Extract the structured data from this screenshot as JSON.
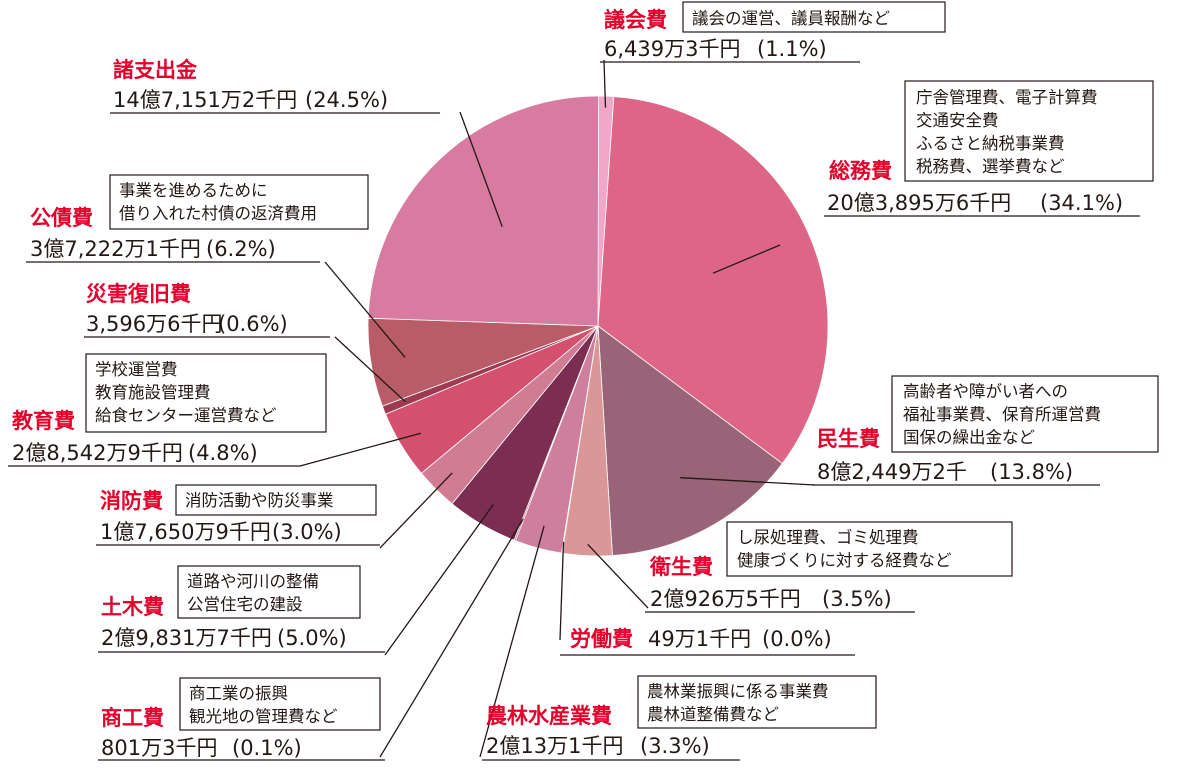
{
  "chart_data": {
    "type": "pie",
    "start_angle_deg": 0,
    "direction": "clockwise",
    "slices": [
      {
        "name": "議会費",
        "amount": "6,439万3千円",
        "percent_label": "(1.1%)",
        "value": 1.1,
        "color": "#f2a7c8",
        "description": [
          "議会の運営、議員報酬など"
        ]
      },
      {
        "name": "総務費",
        "amount": "20億3,895万6千円",
        "percent_label": "(34.1%)",
        "value": 34.1,
        "color": "#dd6585",
        "description": [
          "庁舎管理費、電子計算費",
          "交通安全費",
          "ふるさと納税事業費",
          "税務費、選挙費など"
        ]
      },
      {
        "name": "民生費",
        "amount": "8億2,449万2千",
        "percent_label": "(13.8%)",
        "value": 13.8,
        "color": "#9a6478",
        "description": [
          "高齢者や障がい者への",
          "福祉事業費、保育所運営費",
          "国保の繰出金など"
        ]
      },
      {
        "name": "衛生費",
        "amount": "2億926万5千円",
        "percent_label": "(3.5%)",
        "value": 3.5,
        "color": "#d99797",
        "description": [
          "し尿処理費、ゴミ処理費",
          "健康づくりに対する経費など"
        ]
      },
      {
        "name": "労働費",
        "amount": "49万1千円",
        "percent_label": "(0.0%)",
        "value": 0.0,
        "color": "#c06a80",
        "description": []
      },
      {
        "name": "農林水産業費",
        "amount": "2億13万1千円",
        "percent_label": "(3.3%)",
        "value": 3.3,
        "color": "#cf7f9e",
        "description": [
          "農林業振興に係る事業費",
          "農林道整備費など"
        ]
      },
      {
        "name": "商工費",
        "amount": "801万3千円",
        "percent_label": "(0.1%)",
        "value": 0.1,
        "color": "#8f3a5a",
        "description": [
          "商工業の振興",
          "観光地の管理費など"
        ]
      },
      {
        "name": "土木費",
        "amount": "2億9,831万7千円",
        "percent_label": "(5.0%)",
        "value": 5.0,
        "color": "#7c2d52",
        "description": [
          "道路や河川の整備",
          "公営住宅の建設"
        ]
      },
      {
        "name": "消防費",
        "amount": "1億7,650万9千円",
        "percent_label": "(3.0%)",
        "value": 3.0,
        "color": "#d07c93",
        "description": [
          "消防活動や防災事業"
        ]
      },
      {
        "name": "教育費",
        "amount": "2億8,542万9千円",
        "percent_label": "(4.8%)",
        "value": 4.8,
        "color": "#d3506f",
        "description": [
          "学校運営費",
          "教育施設管理費",
          "給食センター運営費など"
        ]
      },
      {
        "name": "災害復旧費",
        "amount": "3,596万6千円",
        "percent_label": "(0.6%)",
        "value": 0.6,
        "color": "#9b3a51",
        "description": []
      },
      {
        "name": "公債費",
        "amount": "3億7,222万1千円",
        "percent_label": "(6.2%)",
        "value": 6.2,
        "color": "#b85d67",
        "description": [
          "事業を進めるために",
          "借り入れた村債の返済費用"
        ]
      },
      {
        "name": "諸支出金",
        "amount": "14億7,151万2千円",
        "percent_label": "(24.5%)",
        "value": 24.5,
        "color": "#d77ba0",
        "description": []
      }
    ]
  }
}
